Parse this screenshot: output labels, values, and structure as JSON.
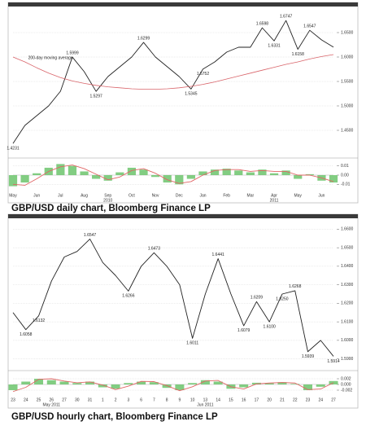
{
  "captions": [
    "GBP/USD daily chart, Bloomberg Finance LP",
    "GBP/USD hourly chart, Bloomberg Finance LP"
  ],
  "chart_data": [
    {
      "type": "line",
      "categories": [
        "May",
        null,
        "Jun",
        null,
        "Jul",
        null,
        "Aug",
        null,
        "Sep",
        null,
        "Oct",
        null,
        "Nov",
        null,
        "Dec",
        null,
        "Jan",
        null,
        "Feb",
        null,
        "Mar",
        null,
        "Apr",
        null,
        "May",
        null,
        "Jun",
        null
      ],
      "categories2": [
        null,
        null,
        null,
        null,
        null,
        null,
        null,
        null,
        "2010",
        null,
        null,
        null,
        null,
        null,
        null,
        null,
        null,
        null,
        null,
        null,
        null,
        null,
        "2011",
        null,
        null,
        null,
        null,
        null
      ],
      "annotation": "200-day moving average",
      "ylim": [
        1.4,
        1.7
      ],
      "yticks": [
        {
          "value": 1.45,
          "label": "1.4500"
        },
        {
          "value": 1.5,
          "label": "1.5000"
        },
        {
          "value": 1.55,
          "label": "1.5500"
        },
        {
          "value": 1.6,
          "label": "1.6000"
        },
        {
          "value": 1.65,
          "label": "1.6500"
        }
      ],
      "grid": true,
      "series": [
        {
          "color": "#222222",
          "values": [
            1.4231,
            1.46,
            1.48,
            1.5,
            1.53,
            1.5999,
            1.57,
            1.5297,
            1.56,
            1.58,
            1.6,
            1.6299,
            1.6,
            1.58,
            1.56,
            1.5345,
            1.5752,
            1.59,
            1.61,
            1.62,
            1.62,
            1.6598,
            1.6331,
            1.6747,
            1.6158,
            1.6547,
            1.635,
            1.6202
          ],
          "value_labels": [
            "1.4231",
            null,
            null,
            null,
            null,
            "1.5999",
            null,
            "1.5297",
            null,
            null,
            null,
            "1.6299",
            null,
            null,
            null,
            "1.5345",
            "1.5752",
            null,
            null,
            null,
            null,
            "1.6598",
            "1.6331",
            "1.6747",
            "1.6158",
            "1.6547",
            null,
            null
          ]
        },
        {
          "color": "#d9646a",
          "values": [
            1.6,
            1.59,
            1.578,
            1.567,
            1.558,
            1.551,
            1.546,
            1.542,
            1.539,
            1.537,
            1.535,
            1.534,
            1.534,
            1.535,
            1.537,
            1.54,
            1.544,
            1.549,
            1.555,
            1.561,
            1.567,
            1.573,
            1.579,
            1.585,
            1.59,
            1.596,
            1.601,
            1.605
          ]
        }
      ]
    },
    {
      "type": "bar",
      "ylim": [
        -0.015,
        0.015
      ],
      "yticks": [
        0.01,
        {
          "value": 0,
          "label": "0.00"
        },
        -0.01
      ],
      "series": [
        {
          "type": "bar",
          "color": "#6cc46c",
          "values": [
            -0.012,
            -0.008,
            0.002,
            0.008,
            0.012,
            0.01,
            0.004,
            -0.004,
            -0.006,
            0.003,
            0.008,
            0.006,
            -0.002,
            -0.008,
            -0.01,
            -0.004,
            0.004,
            0.006,
            0.007,
            0.005,
            0.003,
            0.006,
            0.002,
            0.005,
            -0.004,
            0.001,
            -0.006,
            -0.008
          ]
        },
        {
          "type": "line",
          "color": "#e06666",
          "values": [
            -0.01,
            -0.011,
            -0.004,
            0.004,
            0.009,
            0.011,
            0.007,
            0.001,
            -0.005,
            -0.002,
            0.005,
            0.007,
            0.002,
            -0.005,
            -0.009,
            -0.007,
            0.0,
            0.005,
            0.006,
            0.006,
            0.004,
            0.005,
            0.004,
            0.004,
            0.0,
            0.0,
            -0.003,
            -0.007
          ]
        }
      ]
    },
    {
      "type": "line",
      "categories": [
        "23",
        "24",
        "25",
        "26",
        "27",
        "30",
        "31",
        "1",
        "2",
        "3",
        "6",
        "7",
        "8",
        "9",
        "10",
        "13",
        "14",
        "15",
        "16",
        "17",
        "20",
        "21",
        "22",
        "23",
        "24",
        "27"
      ],
      "categories2": [
        null,
        null,
        null,
        "May 2011",
        null,
        null,
        null,
        null,
        null,
        null,
        null,
        null,
        null,
        null,
        null,
        "Jun 2011",
        null,
        null,
        null,
        null,
        null,
        null,
        null,
        null,
        null,
        null
      ],
      "ylim": [
        1.585,
        1.665
      ],
      "yticks": [
        {
          "value": 1.59,
          "label": "1.5900"
        },
        {
          "value": 1.6,
          "label": "1.6000"
        },
        {
          "value": 1.61,
          "label": "1.6100"
        },
        {
          "value": 1.62,
          "label": "1.6200"
        },
        {
          "value": 1.63,
          "label": "1.6300"
        },
        {
          "value": 1.64,
          "label": "1.6400"
        },
        {
          "value": 1.65,
          "label": "1.6500"
        },
        {
          "value": 1.66,
          "label": "1.6600"
        }
      ],
      "grid": true,
      "series": [
        {
          "color": "#222222",
          "values": [
            1.615,
            1.6058,
            1.6132,
            1.632,
            1.645,
            1.648,
            1.6547,
            1.642,
            1.635,
            1.6266,
            1.64,
            1.6473,
            1.64,
            1.63,
            1.6011,
            1.625,
            1.6441,
            1.625,
            1.6079,
            1.6209,
            1.61,
            1.625,
            1.6268,
            1.5939,
            1.6,
            1.5914
          ],
          "value_labels": [
            null,
            "1.6058",
            "1.6132",
            null,
            null,
            null,
            "1.6547",
            null,
            null,
            "1.6266",
            null,
            "1.6473",
            null,
            null,
            "1.6011",
            null,
            "1.6441",
            null,
            "1.6079",
            "1.6209",
            "1.6100",
            "1.6250",
            "1.6268",
            "1.5939",
            null,
            "1.5914"
          ]
        }
      ]
    },
    {
      "type": "bar",
      "ylim": [
        -0.004,
        0.004
      ],
      "yticks": [
        {
          "value": 0.002,
          "label": "0.002"
        },
        {
          "value": 0,
          "label": "0.000"
        },
        {
          "value": -0.002,
          "label": "-0.002"
        }
      ],
      "series": [
        {
          "type": "bar",
          "color": "#6cc46c",
          "values": [
            -0.002,
            0.001,
            0.002,
            0.0015,
            0.001,
            0.0005,
            0.001,
            -0.001,
            -0.0015,
            0.0005,
            0.001,
            0.0008,
            -0.0012,
            -0.002,
            0.0005,
            0.0015,
            0.001,
            -0.0015,
            -0.001,
            0.0006,
            0.0004,
            0.0008,
            0.0002,
            -0.002,
            -0.0008,
            0.0012
          ]
        },
        {
          "type": "line",
          "color": "#e06666",
          "values": [
            -0.0025,
            -0.001,
            0.0018,
            0.002,
            0.0012,
            0.0006,
            0.0009,
            -0.0002,
            -0.0018,
            -0.0006,
            0.0011,
            0.001,
            -0.0004,
            -0.0022,
            -0.0008,
            0.0012,
            0.0014,
            -0.0008,
            -0.0016,
            0.0002,
            0.0005,
            0.0007,
            0.0005,
            -0.0018,
            -0.0016,
            0.0006
          ]
        }
      ]
    }
  ]
}
